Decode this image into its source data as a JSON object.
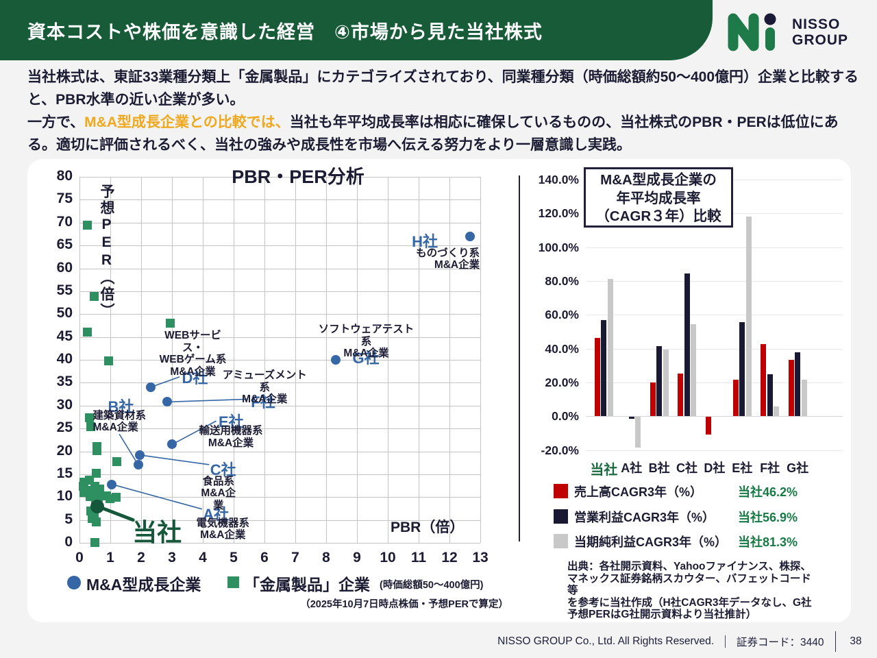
{
  "header": {
    "title": "資本コストや株価を意識した経営　④市場から見た当社株式",
    "logo": {
      "line1": "NISSO",
      "line2": "GROUP"
    }
  },
  "intro": {
    "p1": "当社株式は、東証33業種分類上「金属製品」にカテゴライズされており、同業種分類（時価総額約50～400億円）企業と比較すると、PBR水準の近い企業が多い。",
    "p2_prefix": "一方で、",
    "p2_highlight": "M&A型成長企業との比較では、",
    "p2_suffix": "当社も年平均成長率は相応に確保しているものの、当社株式のPBR・PERは低位にある。適切に評価されるべく、当社の強みや成長性を市場へ伝える努力をより一層意識し実践。"
  },
  "colors": {
    "header_green": "#175b38",
    "accent_green_dark": "#14573a",
    "metal_green": "#2e8f61",
    "ma_blue": "#3566a6",
    "navy": "#1b1b33",
    "bar_red": "#c00000",
    "bar_navy": "#191934",
    "bar_gray": "#c8c8c8",
    "highlight_yellow": "#f0a81e",
    "value_green": "#177a46"
  },
  "chart_data": [
    {
      "type": "scatter",
      "title": "PBR・PER分析",
      "xlabel": "PBR（倍）",
      "ylabel": "予想PER（倍）",
      "xlim": [
        0,
        13
      ],
      "ylim": [
        0,
        80
      ],
      "x_tick_step": 1,
      "y_tick_step": 5,
      "grid": true,
      "legend_note": "(時価総額50～400億円)",
      "footnote": "（2025年10月7日時点株価・予想PERで算定）",
      "series": [
        {
          "name": "M&A型成長企業",
          "marker": "circle",
          "color": "#3566a6",
          "points": [
            {
              "label": "A社",
              "industry": [
                "電気機器系",
                "M&A企業"
              ],
              "x": 1.05,
              "y": 12.8,
              "label_offset": [
                133,
                26
              ],
              "industry_offset": [
                112,
                48
              ],
              "industry_width": 100,
              "industry_align": "center",
              "leader": [
                131,
                36
              ]
            },
            {
              "label": "B社",
              "industry": [
                "建築資材系",
                "M&A企業"
              ],
              "x": 1.9,
              "y": 17.1,
              "label_offset": [
                -44,
                -102
              ],
              "industry_offset": [
                -66,
                -80
              ],
              "industry_width": 90,
              "industry_align": "left",
              "leader": [
                -27,
                -44
              ]
            },
            {
              "label": "C社",
              "industry": [
                "食品系",
                "M&A企業"
              ],
              "x": 1.95,
              "y": 19.2,
              "label_offset": [
                103,
                4
              ],
              "industry_offset": [
                83,
                30
              ],
              "industry_width": 64,
              "industry_align": "center",
              "leader": [
                101,
                14
              ]
            },
            {
              "label": "D社",
              "industry": [
                "WEBサービス・",
                "WEBゲーム系",
                "M&A企業"
              ],
              "x": 2.3,
              "y": 34,
              "label_offset": [
                46,
                -31
              ],
              "industry_offset": [
                6,
                -84
              ],
              "industry_width": 112,
              "industry_align": "center",
              "leader": [
                42,
                -15
              ]
            },
            {
              "label": "E社",
              "industry": [
                "輸送用機器系",
                "M&A企業"
              ],
              "x": 3.0,
              "y": 21.5,
              "label_offset": [
                68,
                -50
              ],
              "industry_offset": [
                38,
                -28
              ],
              "industry_width": 96,
              "industry_align": "center",
              "leader": [
                64,
                -34
              ]
            },
            {
              "label": "F社",
              "industry": [
                "アミューズメント系",
                "M&A企業"
              ],
              "x": 2.85,
              "y": 30.8,
              "label_offset": [
                122,
                -17
              ],
              "industry_offset": [
                74,
                -47
              ],
              "industry_width": 136,
              "industry_align": "center",
              "leader": [
                116,
                -4
              ]
            },
            {
              "label": "G社",
              "industry": [
                "ソフトウェアテスト系",
                "M&A企業"
              ],
              "x": 8.3,
              "y": 40,
              "label_offset": [
                25,
                -20
              ],
              "industry_offset": [
                -30,
                -53
              ],
              "industry_width": 150,
              "industry_align": "center",
              "leader": null
            },
            {
              "label": "H社",
              "industry": [
                "ものづくり系",
                "M&A企業"
              ],
              "x": 12.67,
              "y": 67,
              "label_offset": [
                -85,
                -10
              ],
              "industry_offset": [
                -92,
                16
              ],
              "industry_width": 106,
              "industry_align": "right",
              "leader": null
            }
          ]
        },
        {
          "name": "「金属製品」企業",
          "marker": "square",
          "color": "#2e8f61",
          "points": [
            [
              0.26,
              69.5
            ],
            [
              0.48,
              53.8
            ],
            [
              0.26,
              46
            ],
            [
              0.95,
              39.8
            ],
            [
              2.95,
              48
            ],
            [
              0.33,
              27.3
            ],
            [
              0.36,
              25.4
            ],
            [
              0.56,
              21.0
            ],
            [
              0.56,
              20.2
            ],
            [
              1.22,
              17.8
            ],
            [
              0.55,
              15.2
            ],
            [
              0.32,
              13.7
            ],
            [
              0.14,
              13.2
            ],
            [
              0.12,
              12.4
            ],
            [
              0.5,
              12.3
            ],
            [
              0.65,
              11.8
            ],
            [
              0.3,
              11.4
            ],
            [
              0.14,
              11.0
            ],
            [
              0.45,
              10.7
            ],
            [
              0.35,
              10.1
            ],
            [
              0.6,
              10.0
            ],
            [
              0.88,
              10.3
            ],
            [
              1.18,
              10.0
            ],
            [
              0.98,
              9.6
            ],
            [
              0.52,
              9.1
            ],
            [
              0.36,
              6.9
            ],
            [
              0.48,
              6.2
            ],
            [
              0.42,
              5.3
            ],
            [
              0.55,
              4.6
            ],
            [
              0.5,
              0.1
            ]
          ]
        },
        {
          "name": "当社",
          "marker": "circle-large",
          "color": "#14573a",
          "points": [
            {
              "label": "当社",
              "x": 0.58,
              "y": 8,
              "label_offset": [
                51,
                9
              ],
              "leader": [
                52,
                20
              ]
            }
          ]
        }
      ]
    },
    {
      "type": "bar",
      "title_lines": [
        "M&A型成長企業の",
        "年平均成長率",
        "（CAGR３年）比較"
      ],
      "categories": [
        "当社",
        "A社",
        "B社",
        "C社",
        "D社",
        "E社",
        "F社",
        "G社"
      ],
      "own_category_index": 0,
      "ylim": [
        -20,
        140
      ],
      "y_tick_step": 20,
      "grid": true,
      "series": [
        {
          "name": "売上高CAGR3年（%）",
          "color": "#c00000",
          "own_label": "当社46.2%",
          "values": [
            46.2,
            null,
            20.0,
            25.3,
            -10.5,
            21.5,
            42.5,
            33.5
          ]
        },
        {
          "name": "営業利益CAGR3年（%）",
          "color": "#191934",
          "own_label": "当社56.9%",
          "values": [
            56.9,
            -1.0,
            41.3,
            84.5,
            null,
            55.5,
            25.0,
            38.0
          ]
        },
        {
          "name": "当期純利益CAGR3年（%）",
          "color": "#c8c8c8",
          "own_label": "当社81.3%",
          "values": [
            81.3,
            -18.0,
            39.3,
            54.5,
            null,
            118.0,
            6.0,
            21.5
          ]
        }
      ],
      "source_note_lines": [
        "出典：各社開示資料、Yahooファイナンス、株探、",
        "マネックス証券銘柄スカウター、バフェットコード等",
        "を参考に当社作成（H社CAGR3年データなし、G社",
        "予想PERはG社開示資料より当社推計）"
      ]
    }
  ],
  "footer": {
    "copyright": "NISSO GROUP Co., Ltd. All Rights Reserved.",
    "code_label": "証券コード：3440",
    "page": "38"
  }
}
